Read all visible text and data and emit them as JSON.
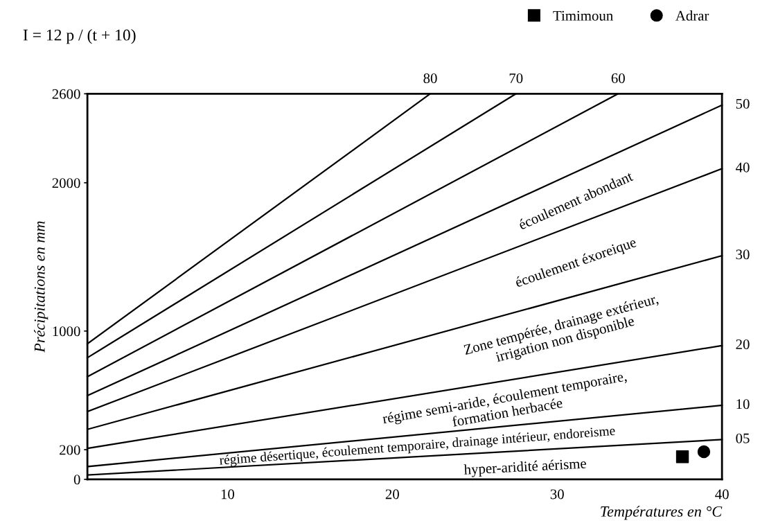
{
  "chart_data": {
    "type": "line",
    "title": "I = 12 p / (t + 10)",
    "xlabel": "Températures en °C",
    "ylabel": "Précipitations en mm",
    "xlim": [
      1.5,
      40
    ],
    "xticks": [
      10,
      20,
      30,
      40
    ],
    "ylim": [
      0,
      2600
    ],
    "yticks": [
      0,
      200,
      1000,
      2000,
      2600
    ],
    "grid": false,
    "legend": "top right",
    "marker": "none",
    "line_style": "solid",
    "series": [
      {
        "name": "05",
        "color": "#000000",
        "x": [
          1.5,
          40
        ],
        "values": [
          29,
          268
        ]
      },
      {
        "name": "10",
        "color": "#000000",
        "x": [
          1.5,
          40
        ],
        "values": [
          86,
          499
        ]
      },
      {
        "name": "20",
        "color": "#000000",
        "x": [
          1.5,
          40
        ],
        "values": [
          209,
          902
        ]
      },
      {
        "name": "30",
        "color": "#000000",
        "x": [
          1.5,
          40
        ],
        "values": [
          337,
          1508
        ]
      },
      {
        "name": "40",
        "color": "#000000",
        "x": [
          1.5,
          40
        ],
        "values": [
          457,
          2095
        ]
      },
      {
        "name": "50",
        "color": "#000000",
        "x": [
          1.5,
          40
        ],
        "values": [
          564,
          2524
        ]
      },
      {
        "name": "60",
        "color": "#000000",
        "x": [
          1.5,
          33.7
        ],
        "values": [
          692,
          2600
        ]
      },
      {
        "name": "70",
        "color": "#000000",
        "x": [
          1.5,
          27.5
        ],
        "values": [
          820,
          2600
        ]
      },
      {
        "name": "80",
        "color": "#000000",
        "x": [
          1.5,
          22.3
        ],
        "values": [
          914,
          2600
        ]
      },
      {
        "name": "Timimoun",
        "type": "scatter",
        "marker": "square",
        "color": "#000000",
        "x": [
          37.6
        ],
        "values": [
          152
        ]
      },
      {
        "name": "Adrar",
        "type": "scatter",
        "marker": "circle",
        "color": "#000000",
        "x": [
          38.9
        ],
        "values": [
          186
        ]
      }
    ],
    "annotations": [
      "écoulement abondant",
      "écoulement éxoreique",
      "Zone tempérée, drainage extérieur,\nirrigation non disponible",
      "régime semi-aride, écoulement temporaire,\nformation herbacée",
      "régime désertique, écoulement temporaire, drainage intérieur, endoreisme",
      "hyper-aridité aérisme"
    ]
  }
}
